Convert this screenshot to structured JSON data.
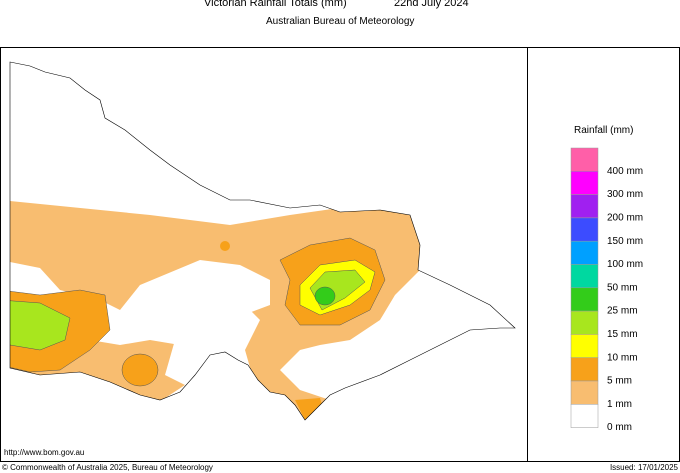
{
  "header": {
    "title": "Victorian Rainfall Totals (mm)",
    "date": "22nd July 2024",
    "subtitle": "Australian Bureau of Meteorology"
  },
  "legend": {
    "title": "Rainfall (mm)",
    "items": [
      {
        "label": "400 mm",
        "color": "#ff5fa8"
      },
      {
        "label": "300 mm",
        "color": "#ff00ff"
      },
      {
        "label": "200 mm",
        "color": "#a020f0"
      },
      {
        "label": "150 mm",
        "color": "#3c4cff"
      },
      {
        "label": "100 mm",
        "color": "#00a0ff"
      },
      {
        "label": "50 mm",
        "color": "#00d8a0"
      },
      {
        "label": "25 mm",
        "color": "#33cc1a"
      },
      {
        "label": "15 mm",
        "color": "#a8e61e"
      },
      {
        "label": "10 mm",
        "color": "#ffff00"
      },
      {
        "label": "5 mm",
        "color": "#f7a11a"
      },
      {
        "label": "1 mm",
        "color": "#f8bd70"
      },
      {
        "label": "0 mm",
        "color": "#ffffff"
      }
    ]
  },
  "footer": {
    "url": "http://www.bom.gov.au",
    "copyright": "© Commonwealth of Australia 2025, Bureau of Meteorology",
    "issued": "Issued: 17/01/2025"
  }
}
